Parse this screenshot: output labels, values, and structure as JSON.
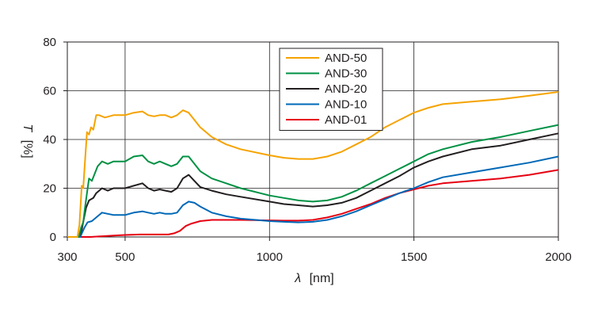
{
  "chart_data": {
    "type": "line",
    "title": "",
    "xlabel_symbol": "λ",
    "xlabel_unit": "[nm]",
    "ylabel_symbol": "T",
    "ylabel_unit": "[%]",
    "xlim": [
      300,
      2000
    ],
    "ylim": [
      0,
      80
    ],
    "x_ticks": [
      300,
      500,
      1000,
      1500,
      2000
    ],
    "y_ticks": [
      0,
      20,
      40,
      60,
      80
    ],
    "x_gridlines": [
      500,
      1000,
      1500
    ],
    "y_gridlines": [
      20,
      40,
      60
    ],
    "grid": true,
    "legend_position": "top-center",
    "series": [
      {
        "name": "AND-50",
        "color": "#f5a300",
        "points": [
          [
            300,
            0
          ],
          [
            335,
            0
          ],
          [
            342,
            5
          ],
          [
            350,
            21
          ],
          [
            355,
            20
          ],
          [
            360,
            29
          ],
          [
            368,
            43
          ],
          [
            375,
            42
          ],
          [
            382,
            45
          ],
          [
            390,
            44
          ],
          [
            400,
            50
          ],
          [
            410,
            50
          ],
          [
            430,
            49
          ],
          [
            460,
            50
          ],
          [
            500,
            50
          ],
          [
            530,
            51
          ],
          [
            560,
            51.5
          ],
          [
            580,
            50
          ],
          [
            600,
            49.5
          ],
          [
            620,
            50
          ],
          [
            640,
            50
          ],
          [
            660,
            49
          ],
          [
            680,
            50
          ],
          [
            700,
            52
          ],
          [
            720,
            51
          ],
          [
            740,
            48
          ],
          [
            760,
            45
          ],
          [
            800,
            41
          ],
          [
            850,
            38
          ],
          [
            900,
            36
          ],
          [
            1000,
            33.5
          ],
          [
            1050,
            32.5
          ],
          [
            1100,
            32
          ],
          [
            1150,
            32
          ],
          [
            1200,
            33
          ],
          [
            1250,
            35
          ],
          [
            1300,
            38
          ],
          [
            1350,
            41
          ],
          [
            1400,
            45
          ],
          [
            1450,
            48
          ],
          [
            1500,
            51
          ],
          [
            1550,
            53
          ],
          [
            1600,
            54.5
          ],
          [
            1700,
            55.5
          ],
          [
            1800,
            56.5
          ],
          [
            1900,
            58
          ],
          [
            2000,
            59.5
          ]
        ]
      },
      {
        "name": "AND-30",
        "color": "#009144",
        "points": [
          [
            300,
            0
          ],
          [
            340,
            0
          ],
          [
            348,
            4
          ],
          [
            355,
            6
          ],
          [
            360,
            11
          ],
          [
            368,
            18
          ],
          [
            375,
            24
          ],
          [
            385,
            23
          ],
          [
            395,
            26
          ],
          [
            405,
            29
          ],
          [
            420,
            31
          ],
          [
            440,
            30
          ],
          [
            460,
            31
          ],
          [
            500,
            31
          ],
          [
            530,
            33
          ],
          [
            560,
            33.5
          ],
          [
            580,
            31
          ],
          [
            600,
            30
          ],
          [
            620,
            31
          ],
          [
            640,
            30
          ],
          [
            660,
            29
          ],
          [
            680,
            30
          ],
          [
            700,
            33
          ],
          [
            720,
            33
          ],
          [
            740,
            30
          ],
          [
            760,
            27
          ],
          [
            800,
            24
          ],
          [
            850,
            22
          ],
          [
            900,
            20
          ],
          [
            1000,
            17
          ],
          [
            1050,
            16
          ],
          [
            1100,
            15
          ],
          [
            1150,
            14.5
          ],
          [
            1200,
            15
          ],
          [
            1250,
            16.5
          ],
          [
            1300,
            19
          ],
          [
            1350,
            22
          ],
          [
            1400,
            25
          ],
          [
            1450,
            28
          ],
          [
            1500,
            31
          ],
          [
            1550,
            34
          ],
          [
            1600,
            36
          ],
          [
            1700,
            39
          ],
          [
            1800,
            41
          ],
          [
            1900,
            43.5
          ],
          [
            2000,
            46
          ]
        ]
      },
      {
        "name": "AND-20",
        "color": "#231f20",
        "points": [
          [
            300,
            0
          ],
          [
            340,
            0
          ],
          [
            350,
            3
          ],
          [
            358,
            8
          ],
          [
            365,
            12
          ],
          [
            375,
            15
          ],
          [
            390,
            16
          ],
          [
            400,
            18
          ],
          [
            420,
            20
          ],
          [
            440,
            19
          ],
          [
            460,
            20
          ],
          [
            500,
            20
          ],
          [
            530,
            21
          ],
          [
            560,
            22
          ],
          [
            580,
            20
          ],
          [
            600,
            19
          ],
          [
            620,
            19.5
          ],
          [
            640,
            19
          ],
          [
            660,
            18.5
          ],
          [
            680,
            20
          ],
          [
            700,
            24
          ],
          [
            720,
            25.5
          ],
          [
            740,
            23
          ],
          [
            760,
            20.5
          ],
          [
            800,
            19
          ],
          [
            850,
            17.5
          ],
          [
            900,
            16.5
          ],
          [
            1000,
            14.5
          ],
          [
            1050,
            13.5
          ],
          [
            1100,
            13
          ],
          [
            1150,
            12.5
          ],
          [
            1200,
            13
          ],
          [
            1250,
            14
          ],
          [
            1300,
            16
          ],
          [
            1350,
            19
          ],
          [
            1400,
            22
          ],
          [
            1450,
            25
          ],
          [
            1500,
            28.5
          ],
          [
            1550,
            31
          ],
          [
            1600,
            33
          ],
          [
            1700,
            36
          ],
          [
            1800,
            37.5
          ],
          [
            1900,
            40
          ],
          [
            2000,
            42.5
          ]
        ]
      },
      {
        "name": "AND-10",
        "color": "#0068b7",
        "points": [
          [
            300,
            0
          ],
          [
            345,
            0
          ],
          [
            352,
            2
          ],
          [
            360,
            4
          ],
          [
            370,
            6
          ],
          [
            385,
            6.5
          ],
          [
            400,
            8
          ],
          [
            420,
            10
          ],
          [
            440,
            9.5
          ],
          [
            460,
            9
          ],
          [
            500,
            9
          ],
          [
            530,
            10
          ],
          [
            560,
            10.5
          ],
          [
            580,
            10
          ],
          [
            600,
            9.5
          ],
          [
            620,
            10
          ],
          [
            640,
            9.5
          ],
          [
            660,
            9.5
          ],
          [
            680,
            10
          ],
          [
            700,
            13
          ],
          [
            720,
            14.5
          ],
          [
            740,
            14
          ],
          [
            760,
            12.5
          ],
          [
            800,
            10
          ],
          [
            850,
            8.5
          ],
          [
            900,
            7.5
          ],
          [
            1000,
            6.5
          ],
          [
            1050,
            6.2
          ],
          [
            1100,
            6
          ],
          [
            1150,
            6.2
          ],
          [
            1200,
            7
          ],
          [
            1250,
            8.5
          ],
          [
            1300,
            10.5
          ],
          [
            1350,
            13
          ],
          [
            1400,
            15.5
          ],
          [
            1450,
            18
          ],
          [
            1500,
            20
          ],
          [
            1550,
            22.5
          ],
          [
            1600,
            24.5
          ],
          [
            1700,
            26.5
          ],
          [
            1800,
            28.5
          ],
          [
            1900,
            30.5
          ],
          [
            2000,
            33
          ]
        ]
      },
      {
        "name": "AND-01",
        "color": "#e60012",
        "points": [
          [
            300,
            0
          ],
          [
            380,
            0
          ],
          [
            420,
            0.3
          ],
          [
            460,
            0.6
          ],
          [
            500,
            0.8
          ],
          [
            550,
            1
          ],
          [
            600,
            1
          ],
          [
            650,
            1
          ],
          [
            670,
            1.5
          ],
          [
            690,
            2.5
          ],
          [
            710,
            4.5
          ],
          [
            730,
            5.5
          ],
          [
            760,
            6.5
          ],
          [
            800,
            7
          ],
          [
            850,
            7
          ],
          [
            900,
            7
          ],
          [
            1000,
            6.8
          ],
          [
            1050,
            6.7
          ],
          [
            1100,
            6.7
          ],
          [
            1150,
            7
          ],
          [
            1200,
            8
          ],
          [
            1250,
            9.5
          ],
          [
            1300,
            11.5
          ],
          [
            1350,
            13.5
          ],
          [
            1400,
            16
          ],
          [
            1450,
            18
          ],
          [
            1500,
            19.5
          ],
          [
            1550,
            21
          ],
          [
            1600,
            22
          ],
          [
            1700,
            23
          ],
          [
            1800,
            24
          ],
          [
            1900,
            25.5
          ],
          [
            2000,
            27.5
          ]
        ]
      }
    ]
  }
}
